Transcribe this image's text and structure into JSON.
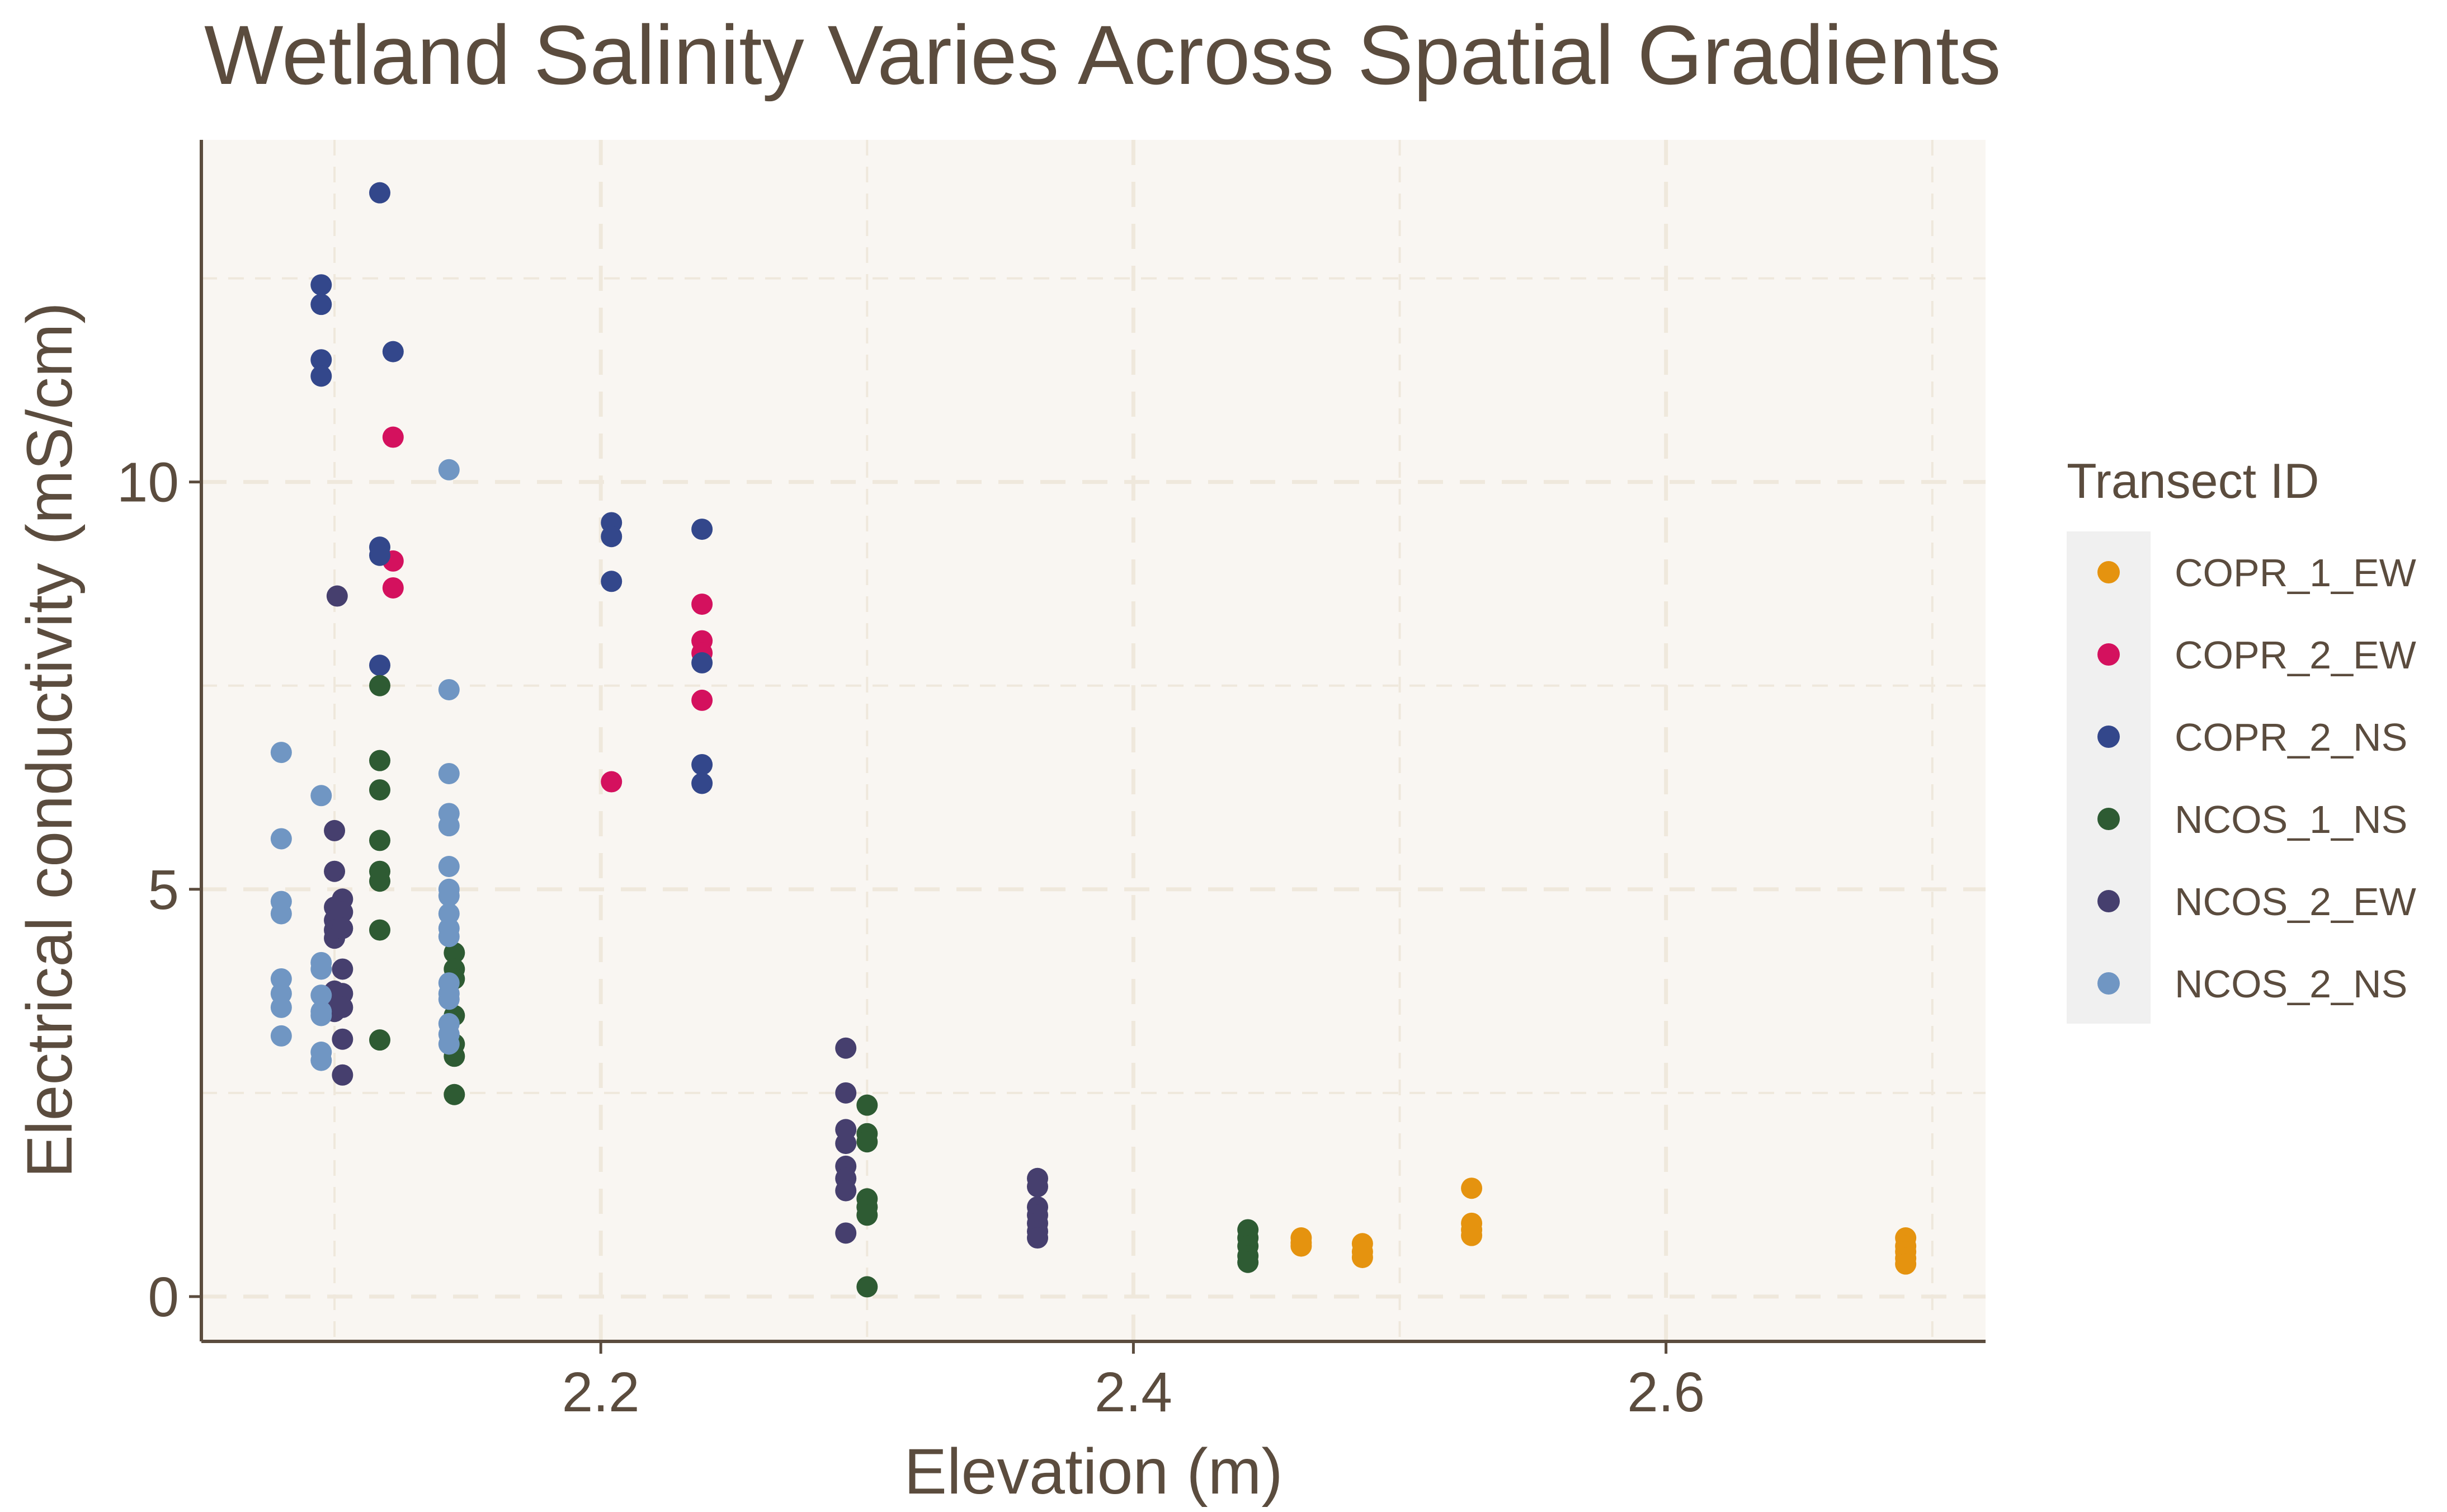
{
  "chart_data": {
    "type": "scatter",
    "title": "Wetland Salinity Varies Across Spatial Gradients",
    "xlabel": "Elevation (m)",
    "ylabel": "Electrical conductivity (mS/cm)",
    "xlim": [
      2.05,
      2.72
    ],
    "ylim": [
      -0.55,
      14.2
    ],
    "xticks": [
      2.2,
      2.4,
      2.6
    ],
    "xtick_labels": [
      "2.2",
      "2.4",
      "2.6"
    ],
    "yticks": [
      0,
      5,
      10
    ],
    "ytick_labels": [
      "0",
      "5",
      "10"
    ],
    "grid": true,
    "legend": {
      "title": "Transect ID",
      "position": "right"
    },
    "colors": {
      "plot_background": "#f9f6f2",
      "gridline": "#efe8dc",
      "axis_line": "#5b4c3e",
      "text": "#5b4c3e",
      "legend_key_background": "#f0f0f0"
    },
    "series": [
      {
        "name": "COPR_1_EW",
        "color": "#e5930f",
        "points": [
          [
            2.463,
            0.72
          ],
          [
            2.463,
            0.62
          ],
          [
            2.463,
            0.66
          ],
          [
            2.486,
            0.65
          ],
          [
            2.486,
            0.55
          ],
          [
            2.486,
            0.48
          ],
          [
            2.527,
            1.33
          ],
          [
            2.527,
            0.9
          ],
          [
            2.527,
            0.82
          ],
          [
            2.527,
            0.75
          ],
          [
            2.69,
            0.72
          ],
          [
            2.69,
            0.62
          ],
          [
            2.69,
            0.55
          ],
          [
            2.69,
            0.47
          ],
          [
            2.69,
            0.4
          ]
        ]
      },
      {
        "name": "COPR_2_EW",
        "color": "#d4115e",
        "points": [
          [
            2.122,
            10.55
          ],
          [
            2.122,
            9.03
          ],
          [
            2.122,
            8.7
          ],
          [
            2.204,
            6.32
          ],
          [
            2.238,
            8.5
          ],
          [
            2.238,
            8.05
          ],
          [
            2.238,
            7.9
          ],
          [
            2.238,
            7.32
          ]
        ]
      },
      {
        "name": "COPR_2_NS",
        "color": "#33478b",
        "points": [
          [
            2.095,
            12.42
          ],
          [
            2.095,
            12.18
          ],
          [
            2.095,
            11.5
          ],
          [
            2.095,
            11.3
          ],
          [
            2.117,
            13.55
          ],
          [
            2.122,
            11.6
          ],
          [
            2.117,
            9.2
          ],
          [
            2.117,
            9.1
          ],
          [
            2.117,
            7.75
          ],
          [
            2.204,
            9.5
          ],
          [
            2.204,
            9.33
          ],
          [
            2.204,
            8.78
          ],
          [
            2.238,
            9.42
          ],
          [
            2.238,
            7.78
          ],
          [
            2.238,
            6.53
          ],
          [
            2.238,
            6.3
          ]
        ]
      },
      {
        "name": "NCOS_1_NS",
        "color": "#2e5b33",
        "points": [
          [
            2.117,
            7.5
          ],
          [
            2.117,
            6.58
          ],
          [
            2.117,
            6.22
          ],
          [
            2.117,
            5.6
          ],
          [
            2.117,
            5.22
          ],
          [
            2.117,
            5.1
          ],
          [
            2.117,
            4.5
          ],
          [
            2.117,
            3.15
          ],
          [
            2.145,
            4.22
          ],
          [
            2.145,
            4.02
          ],
          [
            2.145,
            3.9
          ],
          [
            2.145,
            3.45
          ],
          [
            2.145,
            3.1
          ],
          [
            2.145,
            2.95
          ],
          [
            2.145,
            2.48
          ],
          [
            2.3,
            2.35
          ],
          [
            2.3,
            2.0
          ],
          [
            2.3,
            1.9
          ],
          [
            2.3,
            1.2
          ],
          [
            2.3,
            1.1
          ],
          [
            2.3,
            1.0
          ],
          [
            2.3,
            0.12
          ],
          [
            2.443,
            0.82
          ],
          [
            2.443,
            0.72
          ],
          [
            2.443,
            0.62
          ],
          [
            2.443,
            0.5
          ],
          [
            2.443,
            0.42
          ]
        ]
      },
      {
        "name": "NCOS_2_EW",
        "color": "#463f6e",
        "points": [
          [
            2.101,
            8.6
          ],
          [
            2.1,
            5.72
          ],
          [
            2.1,
            5.22
          ],
          [
            2.1,
            4.78
          ],
          [
            2.1,
            4.62
          ],
          [
            2.1,
            4.5
          ],
          [
            2.1,
            4.4
          ],
          [
            2.1,
            3.75
          ],
          [
            2.1,
            3.6
          ],
          [
            2.1,
            3.5
          ],
          [
            2.103,
            4.88
          ],
          [
            2.103,
            4.72
          ],
          [
            2.103,
            4.52
          ],
          [
            2.103,
            4.02
          ],
          [
            2.103,
            3.72
          ],
          [
            2.103,
            3.55
          ],
          [
            2.103,
            3.16
          ],
          [
            2.103,
            2.72
          ],
          [
            2.292,
            3.05
          ],
          [
            2.292,
            2.5
          ],
          [
            2.292,
            2.05
          ],
          [
            2.292,
            1.88
          ],
          [
            2.292,
            1.6
          ],
          [
            2.292,
            1.45
          ],
          [
            2.292,
            1.3
          ],
          [
            2.292,
            0.78
          ],
          [
            2.364,
            1.45
          ],
          [
            2.364,
            1.35
          ],
          [
            2.364,
            1.1
          ],
          [
            2.364,
            1.0
          ],
          [
            2.364,
            0.9
          ],
          [
            2.364,
            0.8
          ],
          [
            2.364,
            0.72
          ]
        ]
      },
      {
        "name": "NCOS_2_NS",
        "color": "#7096c3",
        "points": [
          [
            2.08,
            6.68
          ],
          [
            2.08,
            5.62
          ],
          [
            2.08,
            4.85
          ],
          [
            2.08,
            4.7
          ],
          [
            2.08,
            3.9
          ],
          [
            2.08,
            3.72
          ],
          [
            2.08,
            3.55
          ],
          [
            2.08,
            3.2
          ],
          [
            2.095,
            6.15
          ],
          [
            2.095,
            4.1
          ],
          [
            2.095,
            4.02
          ],
          [
            2.095,
            3.7
          ],
          [
            2.095,
            3.5
          ],
          [
            2.095,
            3.45
          ],
          [
            2.095,
            3.0
          ],
          [
            2.095,
            2.9
          ],
          [
            2.143,
            10.15
          ],
          [
            2.143,
            7.45
          ],
          [
            2.143,
            6.42
          ],
          [
            2.143,
            5.93
          ],
          [
            2.143,
            5.78
          ],
          [
            2.143,
            5.28
          ],
          [
            2.143,
            5.0
          ],
          [
            2.143,
            4.92
          ],
          [
            2.143,
            4.7
          ],
          [
            2.143,
            4.52
          ],
          [
            2.143,
            4.42
          ],
          [
            2.143,
            3.85
          ],
          [
            2.143,
            3.72
          ],
          [
            2.143,
            3.65
          ],
          [
            2.143,
            3.35
          ],
          [
            2.143,
            3.22
          ],
          [
            2.143,
            3.1
          ]
        ]
      }
    ]
  }
}
